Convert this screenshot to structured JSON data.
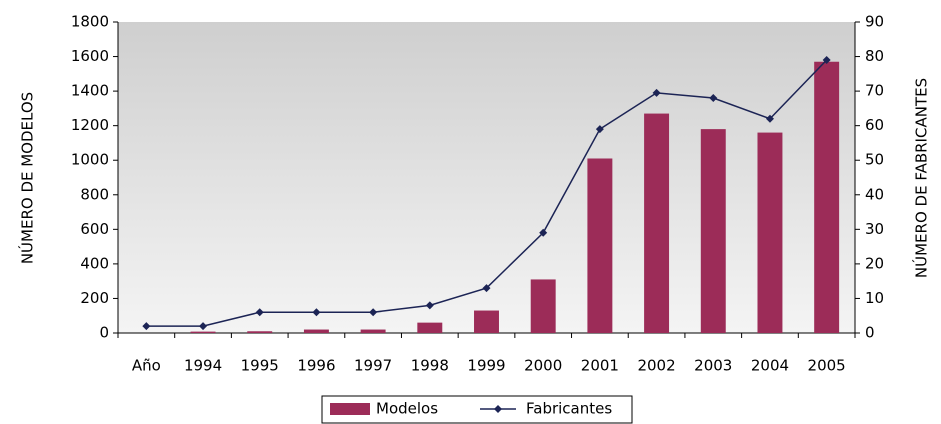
{
  "chart_data": {
    "type": "bar",
    "ylabel": "NÚMERO DE MODELOS",
    "y2label": "NÚMERO DE FABRICANTES",
    "categories": [
      "Año",
      "1994",
      "1995",
      "1996",
      "1997",
      "1998",
      "1999",
      "2000",
      "2001",
      "2002",
      "2003",
      "2004",
      "2005"
    ],
    "series": [
      {
        "name": "Modelos",
        "type": "bar",
        "color": "#9c2c58",
        "values": [
          0,
          8,
          10,
          20,
          20,
          60,
          130,
          310,
          1010,
          1270,
          1180,
          1160,
          1570
        ]
      },
      {
        "name": "Fabricantes",
        "type": "line",
        "axis": "y2",
        "color": "#1c2455",
        "values": [
          2,
          2,
          6,
          6,
          6,
          8,
          13,
          29,
          59,
          69.5,
          68,
          62,
          79
        ]
      }
    ],
    "ylim": [
      0,
      1800
    ],
    "yticks": [
      0,
      200,
      400,
      600,
      800,
      1000,
      1200,
      1400,
      1600,
      1800
    ],
    "y2lim": [
      0,
      90
    ],
    "y2ticks": [
      0,
      10,
      20,
      30,
      40,
      50,
      60,
      70,
      80,
      90
    ],
    "legend": "bottom"
  }
}
